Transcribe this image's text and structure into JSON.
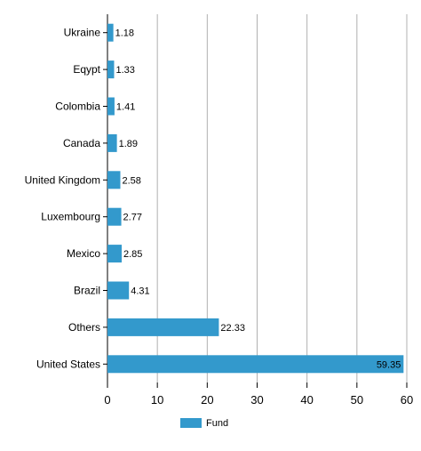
{
  "chart_data": {
    "type": "bar",
    "orientation": "horizontal",
    "categories": [
      "Ukraine",
      "Eqypt",
      "Colombia",
      "Canada",
      "United Kingdom",
      "Luxembourg",
      "Mexico",
      "Brazil",
      "Others",
      "United States"
    ],
    "series": [
      {
        "name": "Fund",
        "color": "#3399cc",
        "values": [
          1.18,
          1.33,
          1.41,
          1.89,
          2.58,
          2.77,
          2.85,
          4.31,
          22.33,
          59.35
        ]
      }
    ],
    "value_labels": [
      "1.18",
      "1.33",
      "1.41",
      "1.89",
      "2.58",
      "2.77",
      "2.85",
      "4.31",
      "22.33",
      "59.35"
    ],
    "xlim": [
      0,
      60
    ],
    "xticks": [
      0,
      10,
      20,
      30,
      40,
      50,
      60
    ],
    "xtick_labels": [
      "0",
      "10",
      "20",
      "30",
      "40",
      "50",
      "60"
    ],
    "grid": "vertical",
    "legend": "bottom-center"
  }
}
